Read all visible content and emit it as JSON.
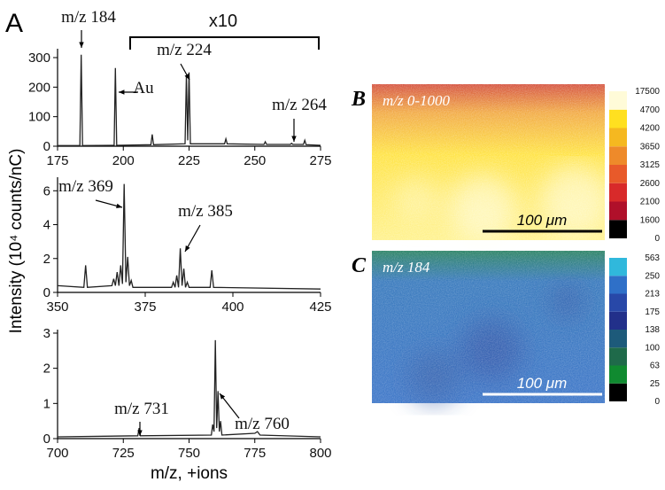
{
  "chart_data": [
    {
      "type": "line",
      "panel": "A",
      "xlim": [
        175,
        275
      ],
      "xticks": [
        175,
        200,
        225,
        250,
        275
      ],
      "ylim": [
        0,
        330
      ],
      "yticks": [
        0,
        100,
        200,
        300
      ],
      "x": [
        175,
        183.5,
        184,
        184.5,
        196.5,
        197,
        197.5,
        210.5,
        211,
        211.5,
        223.5,
        224,
        224.5,
        225,
        225.5,
        238.5,
        239,
        239.5,
        253.5,
        254,
        254.5,
        263.5,
        264,
        264.5,
        268.5,
        269,
        269.5,
        275
      ],
      "y": [
        2,
        2,
        310,
        2,
        3,
        265,
        3,
        5,
        40,
        5,
        8,
        240,
        20,
        250,
        8,
        8,
        25,
        8,
        6,
        15,
        6,
        6,
        10,
        6,
        6,
        20,
        5,
        3
      ],
      "color": "#222222",
      "annotations": [
        "m/z 184",
        "x10",
        "m/z 224",
        "Au",
        "m/z 264"
      ]
    },
    {
      "type": "line",
      "xlim": [
        350,
        425
      ],
      "xticks": [
        350,
        375,
        400,
        425
      ],
      "ylim": [
        0,
        6.8
      ],
      "yticks": [
        0,
        2,
        4,
        6
      ],
      "y_label": "Intensity (10⁴ counts/nC)",
      "x": [
        350,
        357.5,
        358,
        358.5,
        365.5,
        366,
        366.5,
        367,
        367.5,
        368,
        368.5,
        369,
        369.5,
        370,
        370.5,
        371,
        371.5,
        382.5,
        383,
        383.5,
        384,
        384.5,
        385,
        385.5,
        386,
        386.5,
        387,
        387.5,
        393.5,
        394,
        394.5,
        425
      ],
      "y": [
        0.4,
        0.3,
        1.6,
        0.3,
        0.4,
        0.8,
        0.4,
        1.2,
        0.4,
        1.6,
        0.5,
        6.4,
        0.6,
        2.1,
        0.4,
        0.7,
        0.3,
        0.3,
        0.6,
        0.3,
        1.0,
        0.3,
        2.6,
        0.4,
        1.4,
        0.3,
        0.6,
        0.3,
        0.3,
        1.3,
        0.3,
        0.2
      ],
      "color": "#222222",
      "annotations": [
        "m/z 369",
        "m/z 385"
      ]
    },
    {
      "type": "line",
      "xlim": [
        700,
        800
      ],
      "xticks": [
        700,
        725,
        750,
        775,
        800
      ],
      "ylim": [
        0,
        3.1
      ],
      "yticks": [
        0,
        1,
        2,
        3
      ],
      "x_label": "m/z, +ions",
      "x": [
        700,
        730.5,
        731,
        731.5,
        758.5,
        759,
        759.5,
        760,
        760.5,
        761,
        761.5,
        762,
        762.5,
        775,
        776,
        777,
        800
      ],
      "y": [
        0.05,
        0.08,
        0.3,
        0.08,
        0.1,
        0.4,
        0.2,
        2.8,
        0.3,
        1.35,
        0.2,
        0.5,
        0.1,
        0.15,
        0.2,
        0.1,
        0.05
      ],
      "color": "#222222",
      "annotations": [
        "m/z 731",
        "m/z 760"
      ]
    },
    {
      "type": "heatmap",
      "panel": "B",
      "title": "m/z 0-1000",
      "scale_bar": "100 μm",
      "colorbar": {
        "ticks": [
          0,
          1600,
          2100,
          2600,
          3125,
          3650,
          4200,
          4700,
          17500
        ],
        "colors": [
          "#000000",
          "#b0102a",
          "#d82a2a",
          "#e85a2a",
          "#ee8a2a",
          "#f5b820",
          "#ffe020",
          "#fffbd8"
        ]
      }
    },
    {
      "type": "heatmap",
      "panel": "C",
      "title": "m/z 184",
      "scale_bar": "100 μm",
      "colorbar": {
        "ticks": [
          0,
          25,
          63,
          100,
          138,
          175,
          213,
          250,
          563
        ],
        "colors": [
          "#000000",
          "#108a30",
          "#1f6a4a",
          "#1d5a7a",
          "#22308a",
          "#2848a8",
          "#2f70c8",
          "#30b8dc"
        ]
      }
    }
  ]
}
